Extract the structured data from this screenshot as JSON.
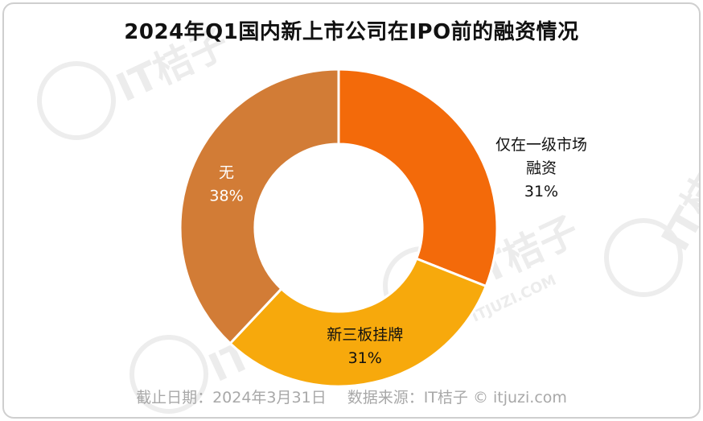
{
  "title": "2024年Q1国内新上市公司在IPO前的融资情况",
  "footer": {
    "date": "截止日期：2024年3月31日",
    "source": "数据来源：IT桔子 © itjuzi.com"
  },
  "chart_data": {
    "type": "pie",
    "donut": true,
    "start_angle_deg": 0,
    "direction": "clockwise",
    "slices": [
      {
        "label": "仅在一级市场\n融资",
        "value": 31,
        "display": "31%",
        "color": "#F36A0A",
        "label_color": "#111111"
      },
      {
        "label": "新三板挂牌",
        "value": 31,
        "display": "31%",
        "color": "#F7A90C",
        "label_color": "#111111"
      },
      {
        "label": "无",
        "value": 38,
        "display": "38%",
        "color": "#D27C36",
        "label_color": "#ffffff"
      }
    ]
  },
  "colors": {
    "title": "#111111",
    "footer": "#a8a8a8",
    "separator": "#ffffff",
    "watermark": "#ececec"
  },
  "watermark": {
    "brand": "IT桔子",
    "site": "ITJUZI.COM"
  }
}
